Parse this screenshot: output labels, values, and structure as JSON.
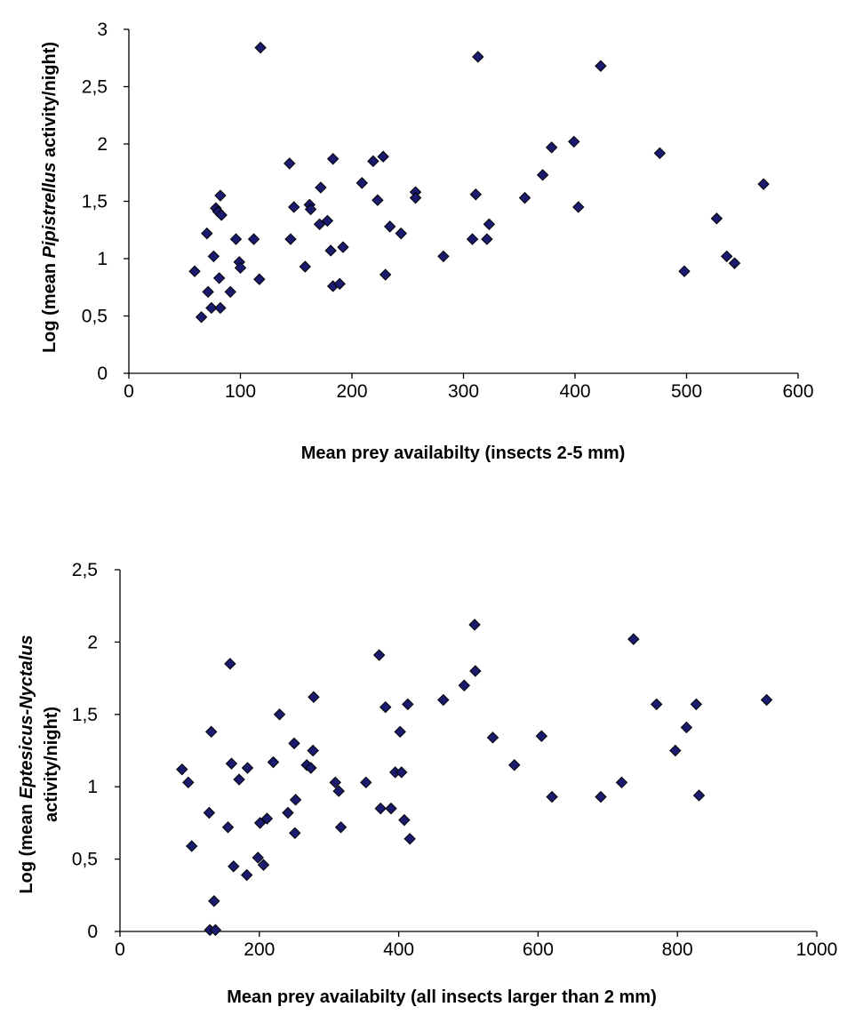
{
  "chart_data": [
    {
      "type": "scatter",
      "xlabel": "Mean prey availabilty (insects 2-5 mm)",
      "ylabel_parts": [
        "Log (mean ",
        "Pipistrellus",
        " activity/night)"
      ],
      "xlim": [
        0,
        600
      ],
      "ylim": [
        0,
        3
      ],
      "x_ticks": [
        0,
        100,
        200,
        300,
        400,
        500,
        600
      ],
      "x_tick_labels": [
        "0",
        "100",
        "200",
        "300",
        "400",
        "500",
        "600"
      ],
      "y_ticks": [
        0,
        0.5,
        1,
        1.5,
        2,
        2.5,
        3
      ],
      "y_tick_labels": [
        "0",
        "0,5",
        "1",
        "1,5",
        "2",
        "2,5",
        "3"
      ],
      "grid": false,
      "marker": "diamond",
      "marker_color": "#1a1a6e",
      "points": [
        [
          59,
          0.89
        ],
        [
          65,
          0.49
        ],
        [
          70,
          1.22
        ],
        [
          71,
          0.71
        ],
        [
          74,
          0.57
        ],
        [
          76,
          1.02
        ],
        [
          78,
          1.44
        ],
        [
          80,
          1.41
        ],
        [
          81,
          0.83
        ],
        [
          82,
          1.55
        ],
        [
          82,
          0.57
        ],
        [
          83,
          1.38
        ],
        [
          91,
          0.71
        ],
        [
          96,
          1.17
        ],
        [
          99,
          0.97
        ],
        [
          100,
          0.92
        ],
        [
          112,
          1.17
        ],
        [
          117,
          0.82
        ],
        [
          118,
          2.84
        ],
        [
          144,
          1.83
        ],
        [
          145,
          1.17
        ],
        [
          148,
          1.45
        ],
        [
          158,
          0.93
        ],
        [
          162,
          1.47
        ],
        [
          163,
          1.43
        ],
        [
          171,
          1.3
        ],
        [
          172,
          1.62
        ],
        [
          178,
          1.33
        ],
        [
          181,
          1.07
        ],
        [
          183,
          0.76
        ],
        [
          183,
          1.87
        ],
        [
          189,
          0.78
        ],
        [
          192,
          1.1
        ],
        [
          209,
          1.66
        ],
        [
          219,
          1.85
        ],
        [
          223,
          1.51
        ],
        [
          228,
          1.89
        ],
        [
          230,
          0.86
        ],
        [
          234,
          1.28
        ],
        [
          244,
          1.22
        ],
        [
          257,
          1.58
        ],
        [
          257,
          1.53
        ],
        [
          282,
          1.02
        ],
        [
          308,
          1.17
        ],
        [
          311,
          1.56
        ],
        [
          313,
          2.76
        ],
        [
          321,
          1.17
        ],
        [
          323,
          1.3
        ],
        [
          355,
          1.53
        ],
        [
          371,
          1.73
        ],
        [
          379,
          1.97
        ],
        [
          399,
          2.02
        ],
        [
          403,
          1.45
        ],
        [
          423,
          2.68
        ],
        [
          476,
          1.92
        ],
        [
          498,
          0.89
        ],
        [
          527,
          1.35
        ],
        [
          536,
          1.02
        ],
        [
          543,
          0.96
        ],
        [
          569,
          1.65
        ]
      ]
    },
    {
      "type": "scatter",
      "xlabel": "Mean prey availabilty (all insects larger than 2 mm)",
      "ylabel_parts": [
        "Log (mean ",
        "Eptesicus-Nyctalus",
        ""
      ],
      "ylabel_line2": "activity/night)",
      "xlim": [
        0,
        1000
      ],
      "ylim": [
        0,
        2.5
      ],
      "x_ticks": [
        0,
        200,
        400,
        600,
        800,
        1000
      ],
      "x_tick_labels": [
        "0",
        "200",
        "400",
        "600",
        "800",
        "1000"
      ],
      "y_ticks": [
        0,
        0.5,
        1,
        1.5,
        2,
        2.5
      ],
      "y_tick_labels": [
        "0",
        "0,5",
        "1",
        "1,5",
        "2",
        "2,5"
      ],
      "grid": false,
      "marker": "diamond",
      "marker_color": "#1a1a6e",
      "points": [
        [
          89,
          1.12
        ],
        [
          98,
          1.03
        ],
        [
          103,
          0.59
        ],
        [
          128,
          0.82
        ],
        [
          129,
          0.01
        ],
        [
          131,
          1.38
        ],
        [
          135,
          0.21
        ],
        [
          137,
          0.01
        ],
        [
          155,
          0.72
        ],
        [
          158,
          1.85
        ],
        [
          160,
          1.16
        ],
        [
          163,
          0.45
        ],
        [
          171,
          1.05
        ],
        [
          182,
          0.39
        ],
        [
          183,
          1.13
        ],
        [
          198,
          0.51
        ],
        [
          201,
          0.75
        ],
        [
          206,
          0.46
        ],
        [
          211,
          0.78
        ],
        [
          220,
          1.17
        ],
        [
          229,
          1.5
        ],
        [
          241,
          0.82
        ],
        [
          250,
          1.3
        ],
        [
          251,
          0.68
        ],
        [
          252,
          0.91
        ],
        [
          268,
          1.15
        ],
        [
          274,
          1.13
        ],
        [
          277,
          1.25
        ],
        [
          278,
          1.62
        ],
        [
          309,
          1.03
        ],
        [
          314,
          0.97
        ],
        [
          317,
          0.72
        ],
        [
          353,
          1.03
        ],
        [
          372,
          1.91
        ],
        [
          374,
          0.85
        ],
        [
          381,
          1.55
        ],
        [
          389,
          0.85
        ],
        [
          395,
          1.1
        ],
        [
          402,
          1.38
        ],
        [
          404,
          1.1
        ],
        [
          408,
          0.77
        ],
        [
          413,
          1.57
        ],
        [
          416,
          0.64
        ],
        [
          464,
          1.6
        ],
        [
          494,
          1.7
        ],
        [
          509,
          2.12
        ],
        [
          510,
          1.8
        ],
        [
          535,
          1.34
        ],
        [
          566,
          1.15
        ],
        [
          605,
          1.35
        ],
        [
          620,
          0.93
        ],
        [
          690,
          0.93
        ],
        [
          720,
          1.03
        ],
        [
          737,
          2.02
        ],
        [
          770,
          1.57
        ],
        [
          797,
          1.25
        ],
        [
          813,
          1.41
        ],
        [
          827,
          1.57
        ],
        [
          831,
          0.94
        ],
        [
          928,
          1.6
        ]
      ]
    }
  ]
}
